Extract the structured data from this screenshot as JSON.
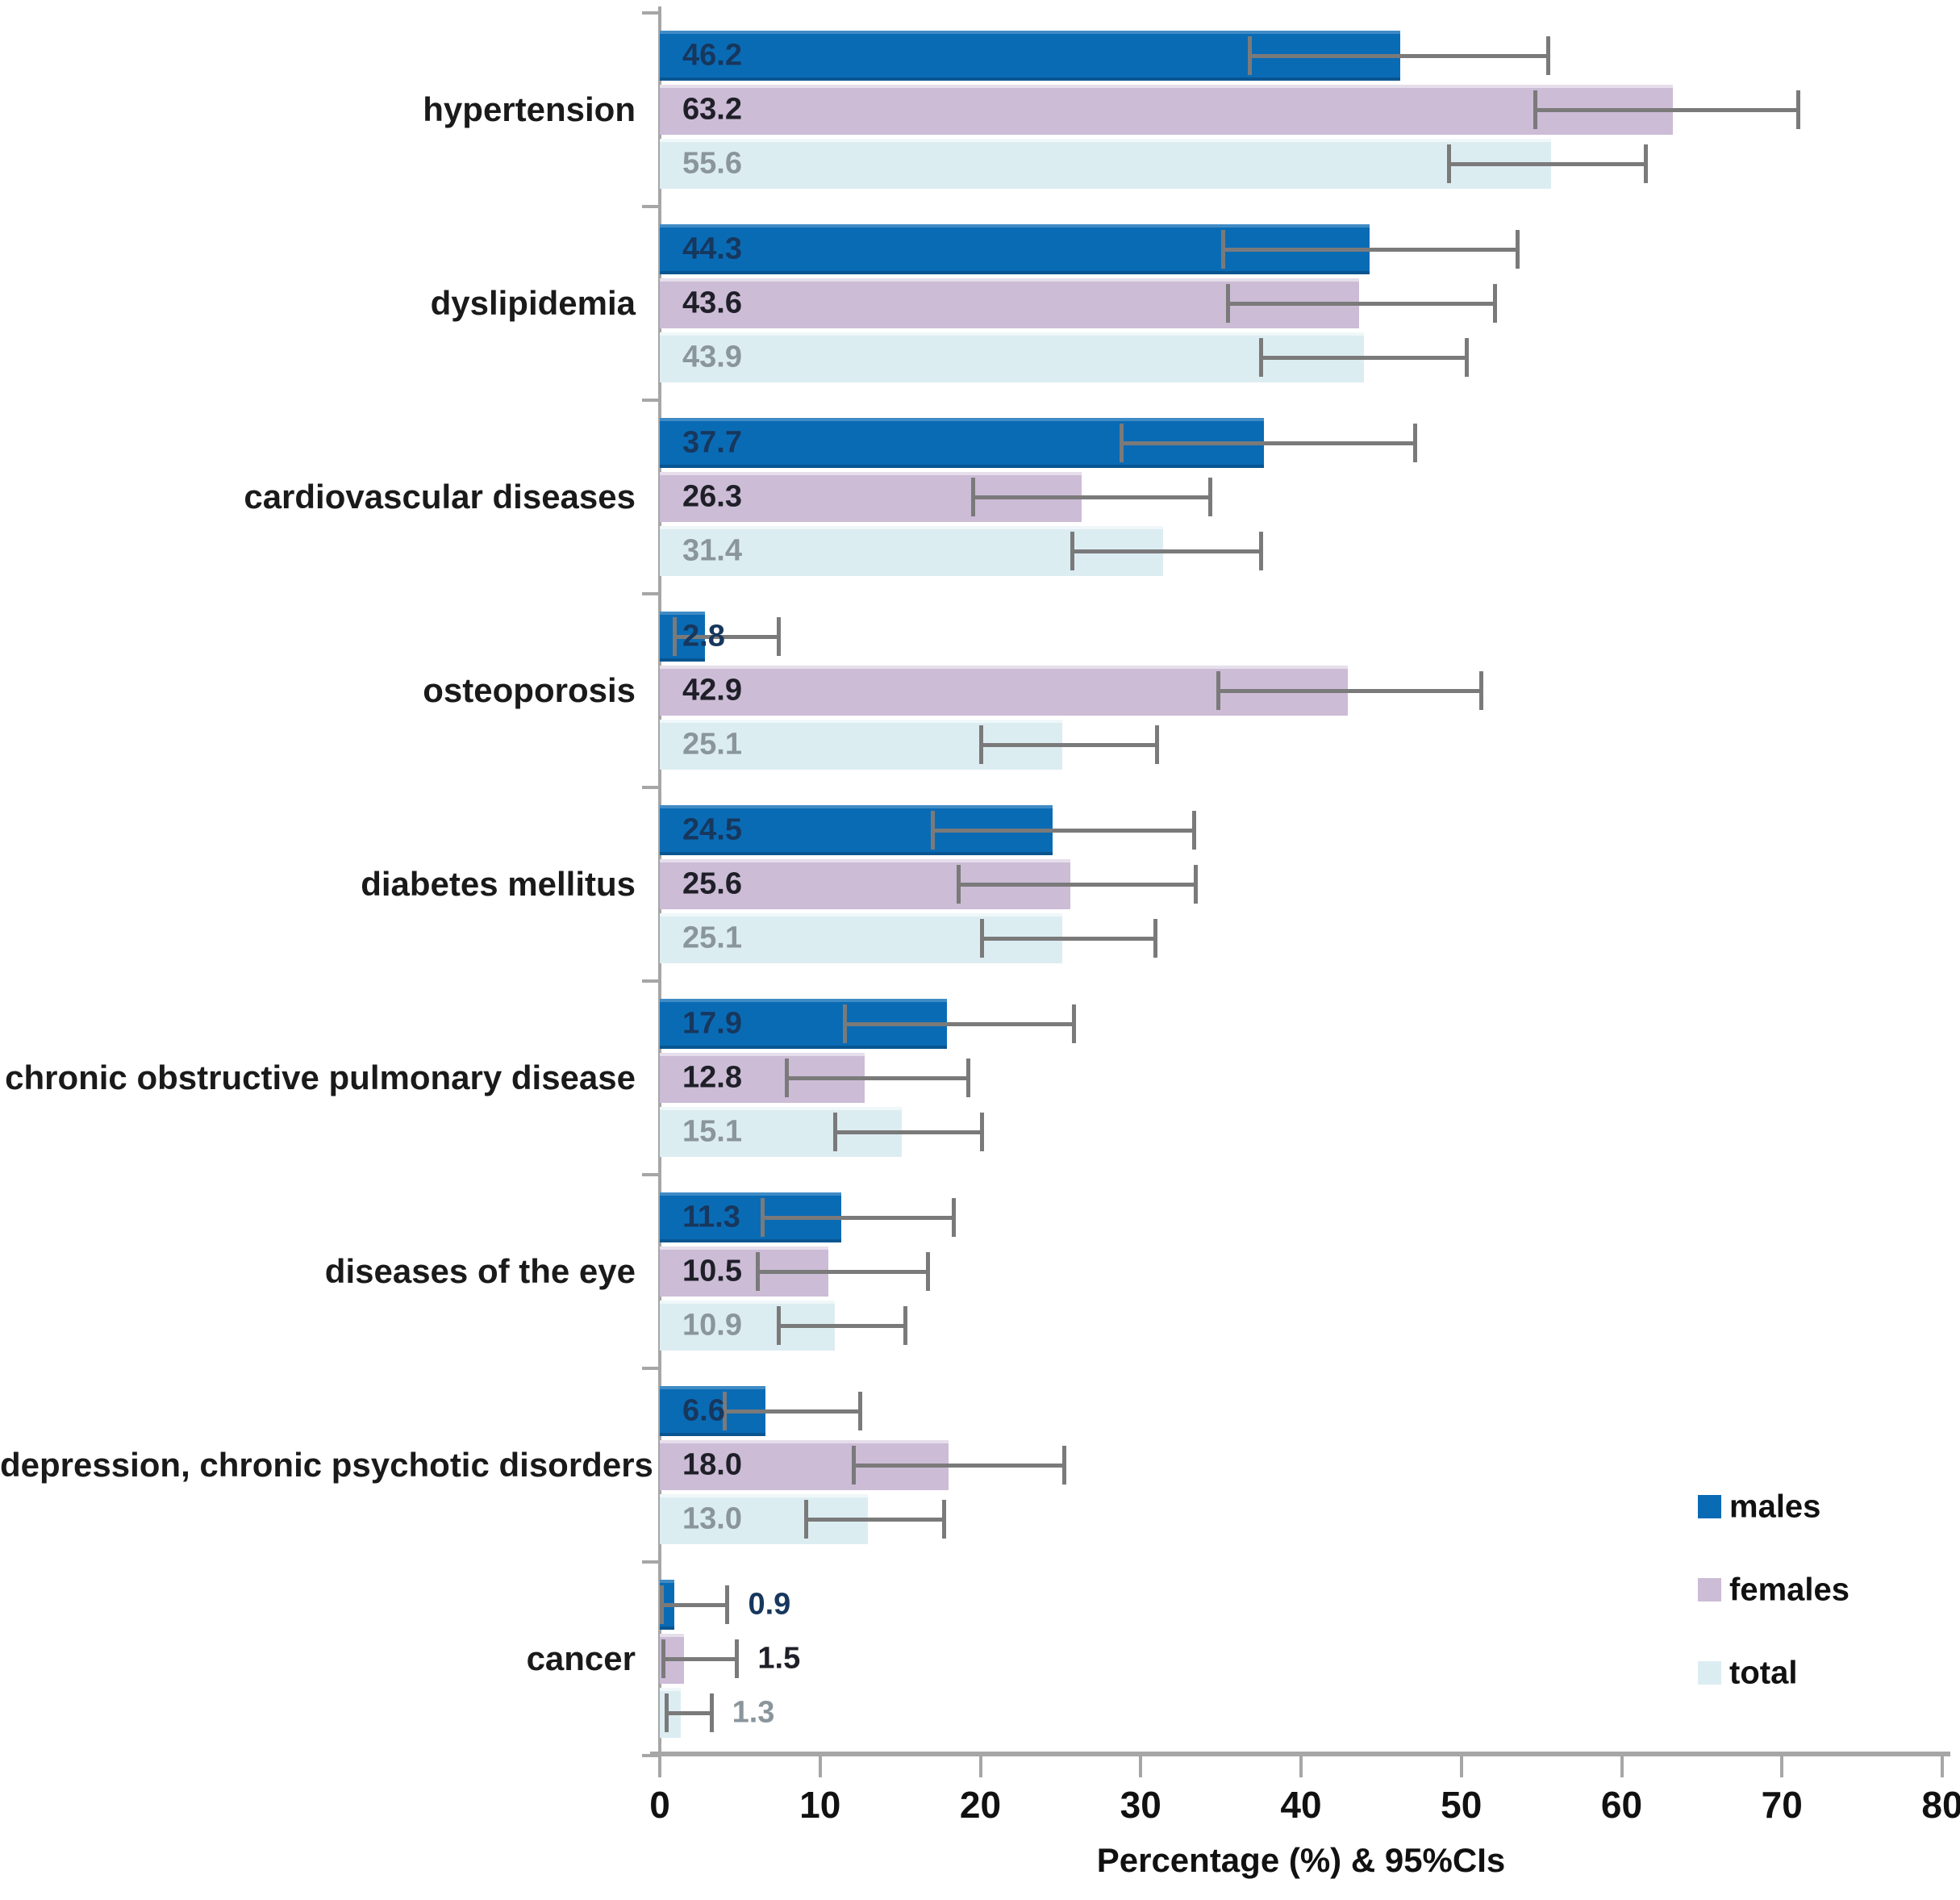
{
  "chart_data": {
    "type": "bar",
    "orientation": "horizontal",
    "title": "",
    "xlabel": "Percentage (%) & 95%CIs",
    "xlim": [
      0,
      80
    ],
    "x_ticks": [
      0,
      10,
      20,
      30,
      40,
      50,
      60,
      70,
      80
    ],
    "grid": false,
    "legend_position": "right-bottom",
    "axis_color": "#a6a6a6",
    "error_bar_color": "#7a7a7a",
    "series": [
      {
        "name": "males",
        "color": "#0a6bb5",
        "value_label_color": "#17375d"
      },
      {
        "name": "females",
        "color": "#ccbcd6",
        "value_label_color": "#1f1f28"
      },
      {
        "name": "total",
        "color": "#dcedf2",
        "value_label_color": "#8a959c"
      }
    ],
    "categories": [
      "hypertension",
      "dyslipidemia",
      "cardiovascular diseases",
      "osteoporosis",
      "diabetes mellitus",
      "chronic obstructive pulmonary disease",
      "diseases of the eye",
      "depression, chronic psychotic disorders",
      "cancer"
    ],
    "rows": [
      {
        "category": "hypertension",
        "bars": [
          {
            "series": "males",
            "value": 46.2,
            "ci_low": 36.8,
            "ci_high": 55.4,
            "label_position": "inside"
          },
          {
            "series": "females",
            "value": 63.2,
            "ci_low": 54.6,
            "ci_high": 71.0,
            "label_position": "inside"
          },
          {
            "series": "total",
            "value": 55.6,
            "ci_low": 49.2,
            "ci_high": 61.5,
            "label_position": "inside"
          }
        ]
      },
      {
        "category": "dyslipidemia",
        "bars": [
          {
            "series": "males",
            "value": 44.3,
            "ci_low": 35.1,
            "ci_high": 53.5,
            "label_position": "inside"
          },
          {
            "series": "females",
            "value": 43.6,
            "ci_low": 35.4,
            "ci_high": 52.1,
            "label_position": "inside"
          },
          {
            "series": "total",
            "value": 43.9,
            "ci_low": 37.5,
            "ci_high": 50.3,
            "label_position": "inside"
          }
        ]
      },
      {
        "category": "cardiovascular diseases",
        "bars": [
          {
            "series": "males",
            "value": 37.7,
            "ci_low": 28.8,
            "ci_high": 47.1,
            "label_position": "inside"
          },
          {
            "series": "females",
            "value": 26.3,
            "ci_low": 19.5,
            "ci_high": 34.3,
            "label_position": "inside"
          },
          {
            "series": "total",
            "value": 31.4,
            "ci_low": 25.7,
            "ci_high": 37.5,
            "label_position": "inside"
          }
        ]
      },
      {
        "category": "osteoporosis",
        "bars": [
          {
            "series": "males",
            "value": 2.8,
            "ci_low": 0.9,
            "ci_high": 7.4,
            "label_position": "inside"
          },
          {
            "series": "females",
            "value": 42.9,
            "ci_low": 34.8,
            "ci_high": 51.2,
            "label_position": "inside"
          },
          {
            "series": "total",
            "value": 25.1,
            "ci_low": 20.0,
            "ci_high": 31.0,
            "label_position": "inside"
          }
        ]
      },
      {
        "category": "diabetes mellitus",
        "bars": [
          {
            "series": "males",
            "value": 24.5,
            "ci_low": 17.0,
            "ci_high": 33.3,
            "label_position": "inside"
          },
          {
            "series": "females",
            "value": 25.6,
            "ci_low": 18.6,
            "ci_high": 33.4,
            "label_position": "inside"
          },
          {
            "series": "total",
            "value": 25.1,
            "ci_low": 20.1,
            "ci_high": 30.9,
            "label_position": "inside"
          }
        ]
      },
      {
        "category": "chronic obstructive pulmonary disease",
        "bars": [
          {
            "series": "males",
            "value": 17.9,
            "ci_low": 11.5,
            "ci_high": 25.8,
            "label_position": "inside"
          },
          {
            "series": "females",
            "value": 12.8,
            "ci_low": 7.9,
            "ci_high": 19.2,
            "label_position": "inside"
          },
          {
            "series": "total",
            "value": 15.1,
            "ci_low": 10.9,
            "ci_high": 20.1,
            "label_position": "inside"
          }
        ]
      },
      {
        "category": "diseases of the eye",
        "bars": [
          {
            "series": "males",
            "value": 11.3,
            "ci_low": 6.4,
            "ci_high": 18.3,
            "label_position": "inside"
          },
          {
            "series": "females",
            "value": 10.5,
            "ci_low": 6.1,
            "ci_high": 16.7,
            "label_position": "inside"
          },
          {
            "series": "total",
            "value": 10.9,
            "ci_low": 7.4,
            "ci_high": 15.3,
            "label_position": "inside"
          }
        ]
      },
      {
        "category": "depression, chronic psychotic disorders",
        "bars": [
          {
            "series": "males",
            "value": 6.6,
            "ci_low": 4.0,
            "ci_high": 12.5,
            "label_position": "inside"
          },
          {
            "series": "females",
            "value": 18.0,
            "ci_low": 12.1,
            "ci_high": 25.2,
            "label_position": "inside"
          },
          {
            "series": "total",
            "value": 13.0,
            "ci_low": 9.1,
            "ci_high": 17.7,
            "label_position": "inside"
          }
        ]
      },
      {
        "category": "cancer",
        "bars": [
          {
            "series": "males",
            "value": 0.9,
            "ci_low": 0.1,
            "ci_high": 4.2,
            "label_position": "outside"
          },
          {
            "series": "females",
            "value": 1.5,
            "ci_low": 0.2,
            "ci_high": 4.8,
            "label_position": "outside"
          },
          {
            "series": "total",
            "value": 1.3,
            "ci_low": 0.4,
            "ci_high": 3.2,
            "label_position": "outside"
          }
        ]
      }
    ],
    "legend": {
      "items": [
        "males",
        "females",
        "total"
      ]
    }
  }
}
